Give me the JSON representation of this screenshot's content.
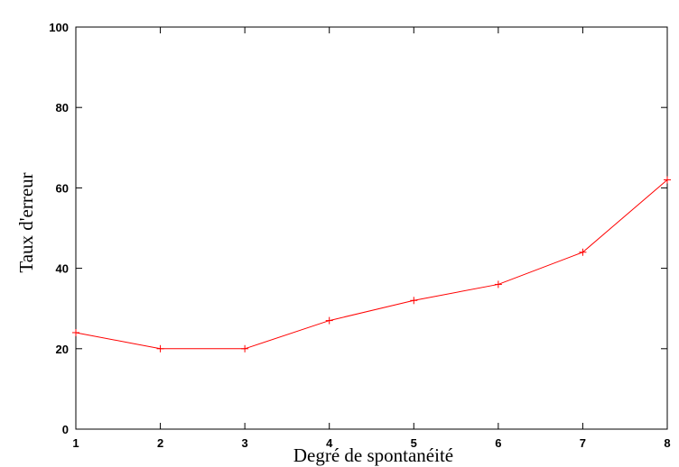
{
  "chart_data": {
    "type": "line",
    "title": "",
    "xlabel": "Degré de spontanéité",
    "ylabel": "Taux d'erreur",
    "x": [
      1,
      2,
      3,
      4,
      5,
      6,
      7,
      8
    ],
    "xlim": [
      1,
      8
    ],
    "ylim": [
      0,
      100
    ],
    "xticks": [
      1,
      2,
      3,
      4,
      5,
      6,
      7,
      8
    ],
    "yticks": [
      0,
      20,
      40,
      60,
      80,
      100
    ],
    "grid": false,
    "legend": "none",
    "series": [
      {
        "values": [
          24,
          20,
          20,
          27,
          32,
          36,
          44,
          62
        ],
        "color": "#ff0000",
        "marker": "plus"
      }
    ],
    "frame_color": "#000000"
  }
}
